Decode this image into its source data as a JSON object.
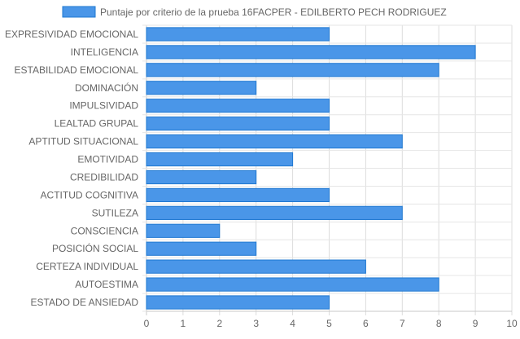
{
  "chart_data": {
    "type": "bar",
    "orientation": "horizontal",
    "categories": [
      "EXPRESIVIDAD EMOCIONAL",
      "INTELIGENCIA",
      "ESTABILIDAD EMOCIONAL",
      "DOMINACIÓN",
      "IMPULSIVIDAD",
      "LEALTAD GRUPAL",
      "APTITUD SITUACIONAL",
      "EMOTIVIDAD",
      "CREDIBILIDAD",
      "ACTITUD COGNITIVA",
      "SUTILEZA",
      "CONSCIENCIA",
      "POSICIÓN SOCIAL",
      "CERTEZA INDIVIDUAL",
      "AUTOESTIMA",
      "ESTADO DE ANSIEDAD"
    ],
    "series": [
      {
        "name": "Puntaje por criterio de la prueba 16FACPER - EDILBERTO PECH RODRIGUEZ",
        "values": [
          5,
          9,
          8,
          3,
          5,
          5,
          7,
          4,
          3,
          5,
          7,
          2,
          3,
          6,
          8,
          5
        ],
        "color": "#4a96e8",
        "border_color": "#1f78d1"
      }
    ],
    "xlim": [
      0,
      10
    ],
    "x_ticks": [
      "0",
      "1",
      "2",
      "3",
      "4",
      "5",
      "6",
      "7",
      "8",
      "9",
      "10"
    ],
    "grid": true,
    "legend_position": "top",
    "xlabel": "",
    "ylabel": ""
  }
}
